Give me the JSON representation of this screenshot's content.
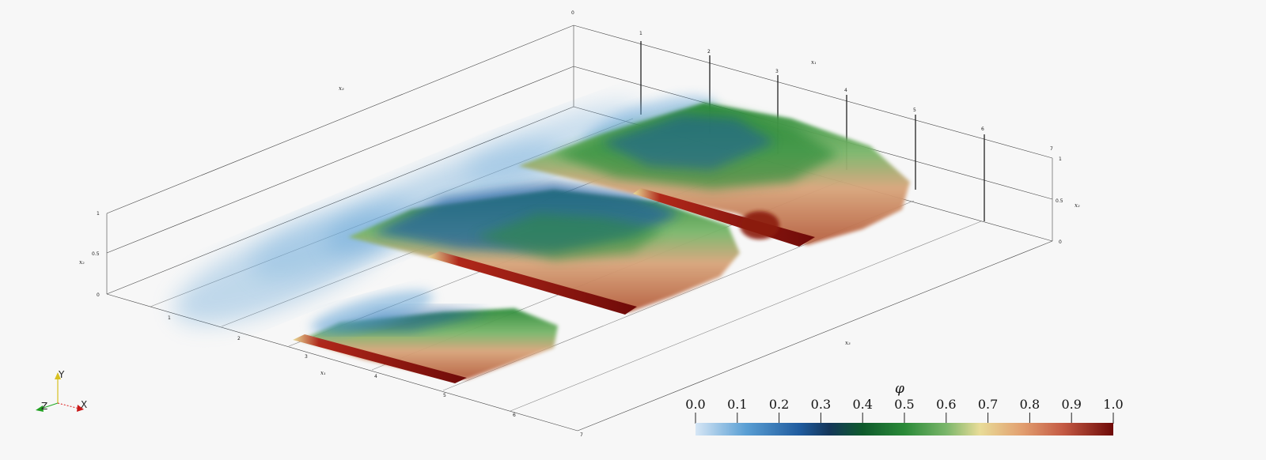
{
  "axes": {
    "x1_name": "x₁",
    "x2_name": "x₂",
    "x3_name": "x₃",
    "left_x2_ticks": [
      "0",
      "0.5",
      "1"
    ],
    "right_x2_ticks": [
      "0",
      "0.5",
      "1"
    ],
    "front_x1_ticks": [
      "1",
      "2",
      "3",
      "4",
      "5",
      "6",
      "7"
    ],
    "back_x1_ticks": [
      "0",
      "1",
      "2",
      "3",
      "4",
      "5",
      "6",
      "7"
    ]
  },
  "orientation": {
    "y": "Y",
    "x": "X",
    "z": "Z"
  },
  "colorbar": {
    "title": "φ",
    "ticks": [
      "0.0",
      "0.1",
      "0.2",
      "0.3",
      "0.4",
      "0.5",
      "0.6",
      "0.7",
      "0.8",
      "0.9",
      "1.0"
    ],
    "range": [
      0.0,
      1.0
    ],
    "stops": [
      {
        "v": 0.0,
        "c": "#d6e6f5"
      },
      {
        "v": 0.12,
        "c": "#5a9fd4"
      },
      {
        "v": 0.25,
        "c": "#1f5b9e"
      },
      {
        "v": 0.32,
        "c": "#14365a"
      },
      {
        "v": 0.4,
        "c": "#0e5a2c"
      },
      {
        "v": 0.5,
        "c": "#2a8a38"
      },
      {
        "v": 0.6,
        "c": "#7ab66a"
      },
      {
        "v": 0.68,
        "c": "#e8dc98"
      },
      {
        "v": 0.78,
        "c": "#e2a070"
      },
      {
        "v": 0.88,
        "c": "#c45a44"
      },
      {
        "v": 1.0,
        "c": "#6e0a08"
      }
    ]
  },
  "colors": {
    "background": "#f7f7f7",
    "box_line": "#444444",
    "blue_wisp": "#5a9fd4",
    "deep_blue": "#1f5b9e",
    "green": "#2a8a38",
    "tan": "#d8a47a",
    "red": "#8c1a0e"
  }
}
